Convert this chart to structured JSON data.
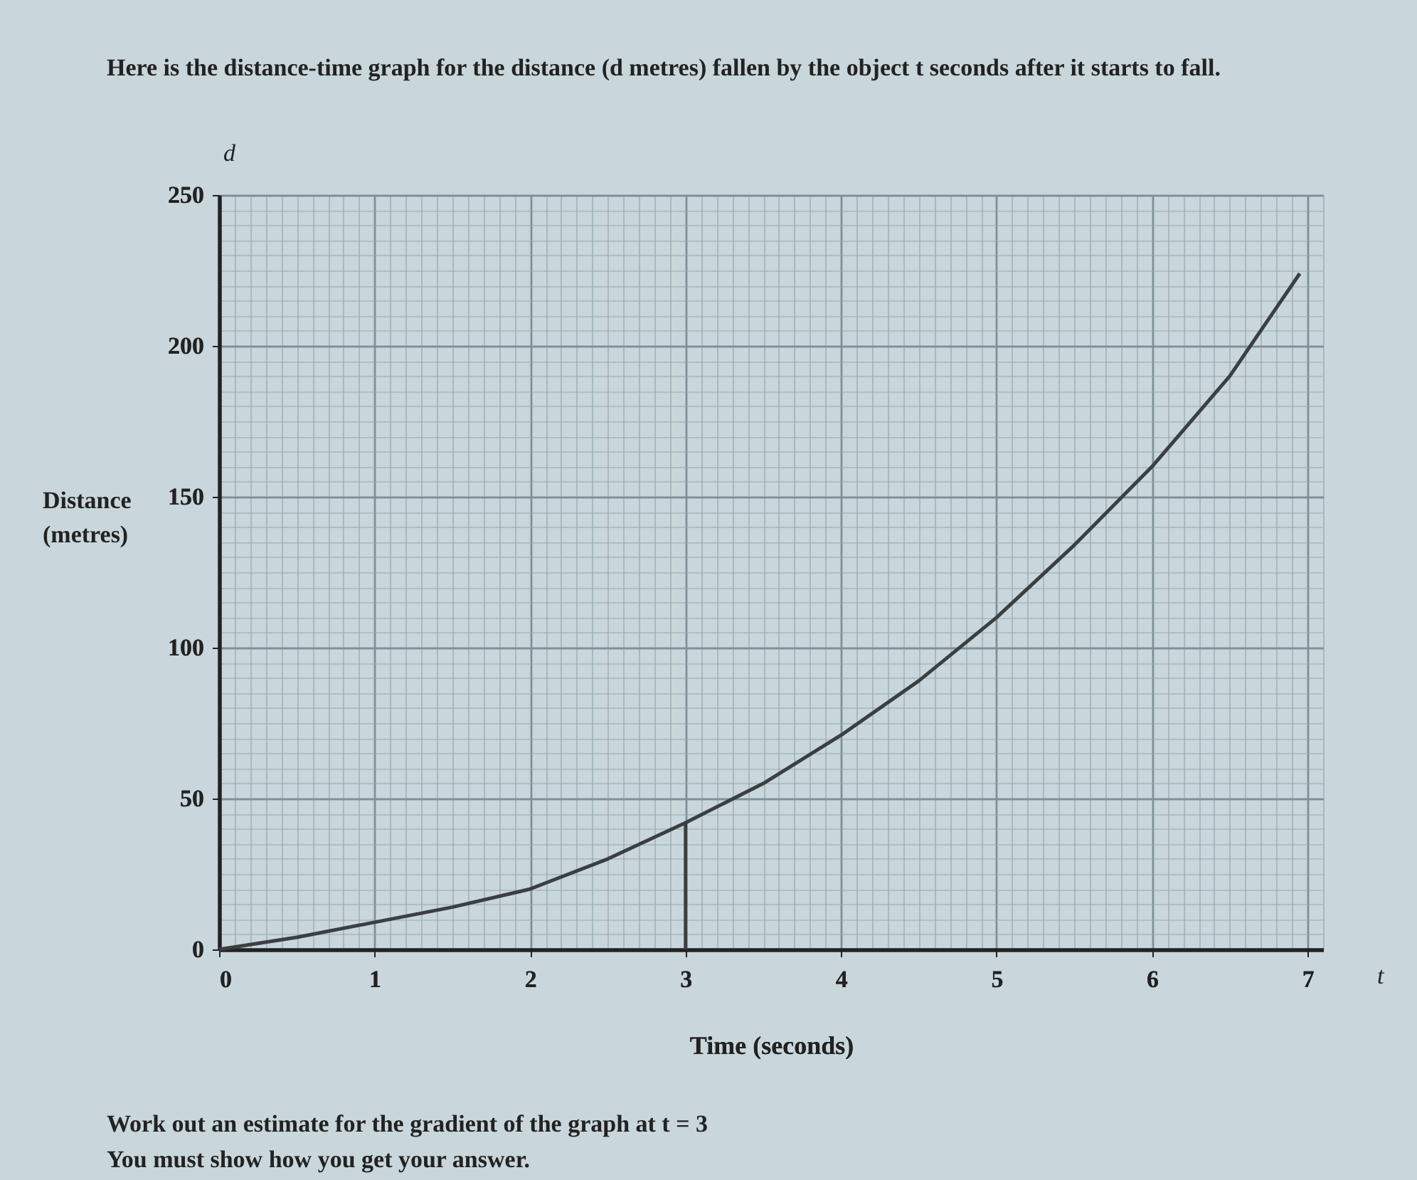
{
  "chart_data": {
    "type": "line",
    "title": "Here is the distance-time graph for the distance (d metres) fallen by the object t seconds after it starts to fall.",
    "xlabel": "Time (seconds)",
    "ylabel": "Distance (metres)",
    "annotations": [
      "d",
      "t",
      "Work out an estimate for the gradient of the graph at t = 3",
      "You must show how you get your answer."
    ],
    "series": [
      {
        "color": "#3a3f42",
        "x": [
          0,
          0.5,
          1,
          1.5,
          2,
          2.5,
          3,
          3.5,
          4,
          4.5,
          5,
          5.5,
          6,
          6.5,
          6.95
        ],
        "values": [
          0,
          4,
          9,
          14,
          20,
          30,
          42,
          55,
          71,
          89,
          110,
          134,
          160,
          190,
          224
        ]
      },
      {
        "color": "#3a3f42",
        "x": [
          3,
          3
        ],
        "values": [
          0,
          42
        ]
      }
    ],
    "xlim": [
      0,
      7.1
    ],
    "ylim": [
      0,
      250
    ],
    "xticks": [
      0,
      1,
      2,
      3,
      4,
      5,
      6,
      7
    ],
    "yticks": [
      0,
      50,
      100,
      150,
      200,
      250
    ],
    "grid": true,
    "line_style": "solid",
    "marker": "none"
  }
}
